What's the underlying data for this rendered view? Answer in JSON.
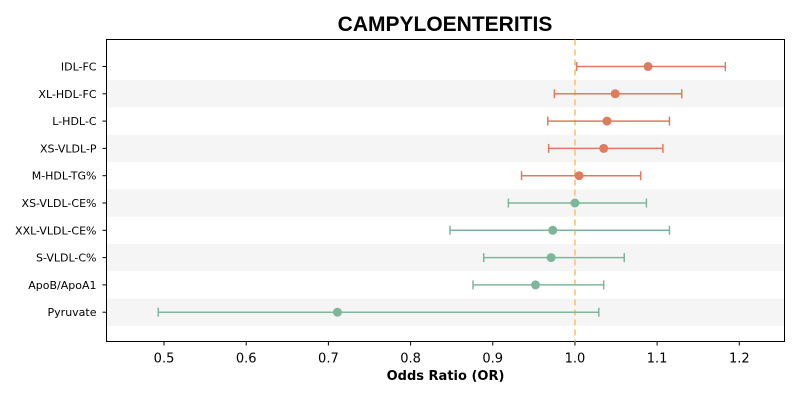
{
  "chart_data": {
    "type": "forest",
    "title": "CAMPYLOENTERITIS",
    "xlabel": "Odds Ratio (OR)",
    "ylabel": "",
    "xlim": [
      0.43,
      1.255
    ],
    "xticks": [
      0.5,
      0.6,
      0.7,
      0.8,
      0.9,
      1.0,
      1.1,
      1.2
    ],
    "xtick_labels": [
      "0.5",
      "0.6",
      "0.7",
      "0.8",
      "0.9",
      "1.0",
      "1.1",
      "1.2"
    ],
    "reference_line": 1.0,
    "reference_color": "#f5c37a",
    "colors": {
      "above": "#e07b5f",
      "below": "#7fb69b",
      "band": "#f5f5f5"
    },
    "grid": false,
    "legend": "none",
    "items": [
      {
        "label": "IDL-FC",
        "or": 1.089,
        "lower": 1.002,
        "upper": 1.183,
        "group": "above"
      },
      {
        "label": "XL-HDL-FC",
        "or": 1.049,
        "lower": 0.975,
        "upper": 1.13,
        "group": "above"
      },
      {
        "label": "L-HDL-C",
        "or": 1.039,
        "lower": 0.967,
        "upper": 1.115,
        "group": "above"
      },
      {
        "label": "XS-VLDL-P",
        "or": 1.035,
        "lower": 0.968,
        "upper": 1.107,
        "group": "above"
      },
      {
        "label": "M-HDL-TG%",
        "or": 1.005,
        "lower": 0.935,
        "upper": 1.08,
        "group": "above"
      },
      {
        "label": "XS-VLDL-CE%",
        "or": 1.0,
        "lower": 0.919,
        "upper": 1.087,
        "group": "below"
      },
      {
        "label": "XXL-VLDL-CE%",
        "or": 0.973,
        "lower": 0.848,
        "upper": 1.115,
        "group": "below"
      },
      {
        "label": "S-VLDL-C%",
        "or": 0.971,
        "lower": 0.889,
        "upper": 1.06,
        "group": "below"
      },
      {
        "label": "ApoB/ApoA1",
        "or": 0.952,
        "lower": 0.876,
        "upper": 1.035,
        "group": "below"
      },
      {
        "label": "Pyruvate",
        "or": 0.711,
        "lower": 0.493,
        "upper": 1.029,
        "group": "below"
      }
    ]
  }
}
